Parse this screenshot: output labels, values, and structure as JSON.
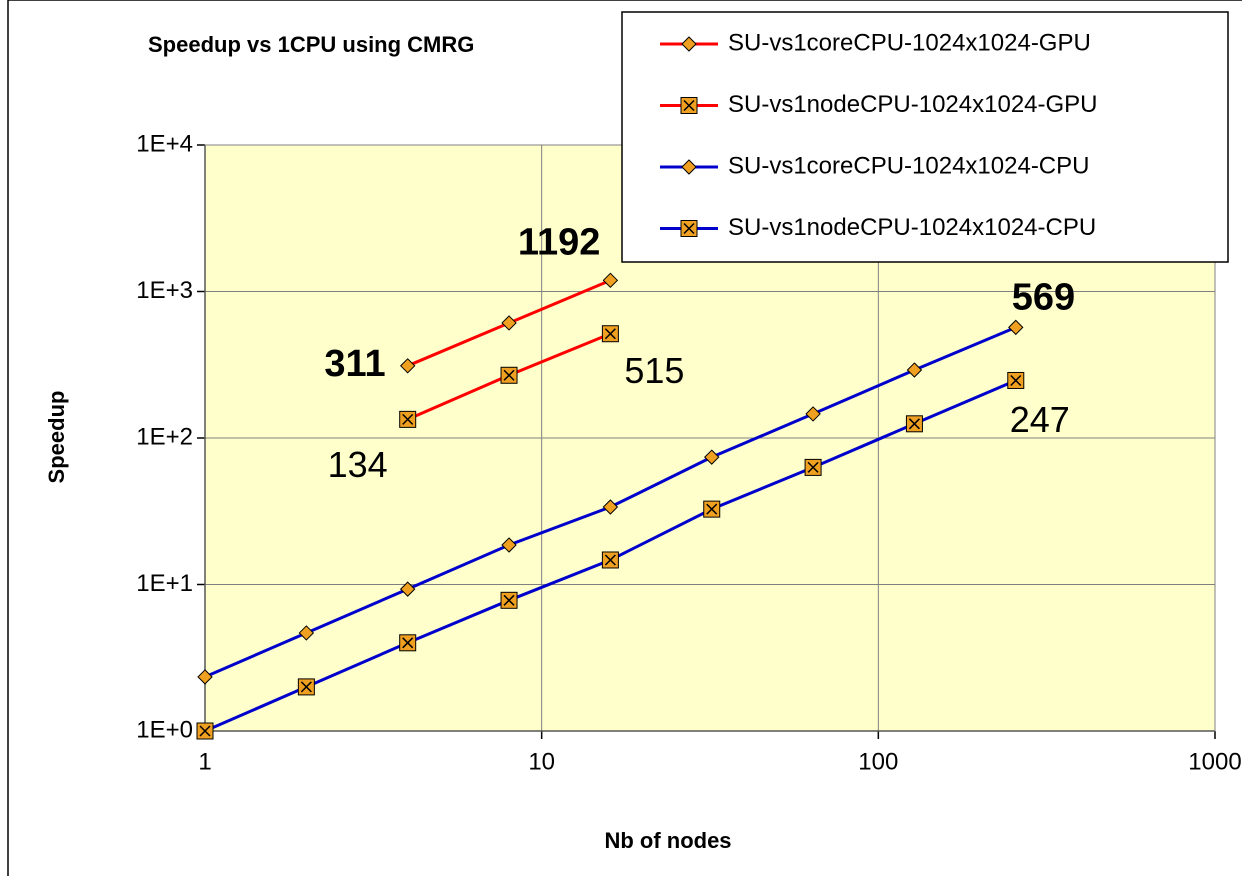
{
  "chart_data": {
    "type": "line",
    "title": "Speedup vs 1CPU using CMRG",
    "x_label": "Nb of nodes",
    "y_label": "Speedup",
    "x_log": true,
    "y_log": true,
    "grid": true,
    "legend": "top-right",
    "xlim": [
      1,
      1000
    ],
    "xticks": [
      1,
      10,
      100,
      1000
    ],
    "ylim": [
      1,
      10000
    ],
    "yticks": [
      {
        "value": 1,
        "label": "1E+0"
      },
      {
        "value": 10,
        "label": "1E+1"
      },
      {
        "value": 100,
        "label": "1E+2"
      },
      {
        "value": 1000,
        "label": "1E+3"
      },
      {
        "value": 10000,
        "label": "1E+4"
      }
    ],
    "series": [
      {
        "name": "SU-vs1coreCPU-1024x1024-GPU",
        "color": "#ff0000",
        "marker": "diamond",
        "label_bold": true,
        "x": [
          4,
          8,
          16
        ],
        "values": [
          311,
          610,
          1192
        ],
        "value_labels": [
          "311",
          null,
          "1192"
        ]
      },
      {
        "name": "SU-vs1nodeCPU-1024x1024-GPU",
        "color": "#ff0000",
        "marker": "square-x",
        "label_bold": false,
        "x": [
          4,
          8,
          16
        ],
        "values": [
          134,
          268,
          515
        ],
        "value_labels": [
          "134",
          null,
          "515"
        ]
      },
      {
        "name": "SU-vs1coreCPU-1024x1024-CPU",
        "color": "#0000cc",
        "marker": "diamond",
        "label_bold": true,
        "x": [
          1,
          2,
          4,
          8,
          16,
          32,
          64,
          128,
          256
        ],
        "values": [
          2.34,
          4.67,
          9.3,
          18.6,
          33.8,
          74,
          146,
          291,
          569
        ],
        "value_labels": [
          null,
          null,
          null,
          null,
          null,
          null,
          null,
          null,
          "569"
        ]
      },
      {
        "name": "SU-vs1nodeCPU-1024x1024-CPU",
        "color": "#0000cc",
        "marker": "square-x",
        "label_bold": false,
        "x": [
          1,
          2,
          4,
          8,
          16,
          32,
          64,
          128,
          256
        ],
        "values": [
          1,
          2,
          4,
          7.8,
          14.7,
          32.7,
          63,
          125,
          247
        ],
        "value_labels": [
          null,
          null,
          null,
          null,
          null,
          null,
          null,
          null,
          "247"
        ]
      }
    ]
  }
}
